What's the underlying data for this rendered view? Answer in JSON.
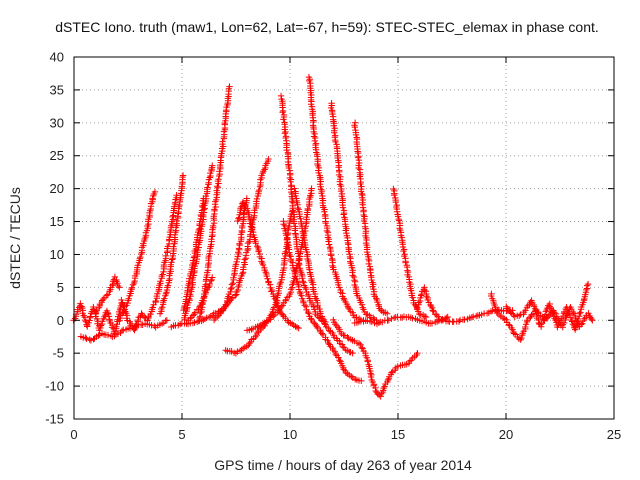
{
  "chart_data": {
    "type": "scatter",
    "title": "dSTEC Iono. truth (maw1, Lon=62, Lat=-67, h=59): STEC-STEC_elemax in phase cont.",
    "xlabel": "GPS time / hours of day 263 of year 2014",
    "ylabel": "dSTEC  / TECUs",
    "xlim": [
      0,
      25
    ],
    "ylim": [
      -15,
      40
    ],
    "xticks": [
      0,
      5,
      10,
      15,
      20,
      25
    ],
    "yticks": [
      -15,
      -10,
      -5,
      0,
      5,
      10,
      15,
      20,
      25,
      30,
      35,
      40
    ],
    "grid": true,
    "marker": "+",
    "color": "#ff0000",
    "series": [
      {
        "points": [
          [
            0.0,
            0
          ],
          [
            0.3,
            2.5
          ],
          [
            0.6,
            -1
          ],
          [
            0.9,
            2
          ],
          [
            1.2,
            -1.5
          ],
          [
            1.5,
            1.5
          ],
          [
            1.9,
            -2
          ],
          [
            2.2,
            3
          ],
          [
            2.5,
            0
          ],
          [
            2.8,
            -1.5
          ],
          [
            3.1,
            1
          ],
          [
            3.4,
            0
          ]
        ]
      },
      {
        "points": [
          [
            0.3,
            -2.5
          ],
          [
            0.8,
            -3
          ],
          [
            1.3,
            -2
          ],
          [
            1.8,
            -2.5
          ],
          [
            2.3,
            -1.5
          ],
          [
            2.8,
            -1
          ],
          [
            3.3,
            -0.5
          ],
          [
            3.8,
            -1
          ],
          [
            4.3,
            0
          ]
        ]
      },
      {
        "points": [
          [
            1.0,
            1
          ],
          [
            1.3,
            3
          ],
          [
            1.6,
            4
          ],
          [
            1.9,
            6.5
          ],
          [
            2.1,
            5
          ]
        ]
      },
      {
        "points": [
          [
            2.1,
            0
          ],
          [
            2.5,
            3
          ],
          [
            2.8,
            6
          ],
          [
            3.1,
            10
          ],
          [
            3.4,
            14
          ],
          [
            3.6,
            18
          ],
          [
            3.75,
            19.5
          ]
        ]
      },
      {
        "points": [
          [
            3.4,
            0
          ],
          [
            3.8,
            3
          ],
          [
            4.1,
            7
          ],
          [
            4.4,
            12
          ],
          [
            4.6,
            16
          ],
          [
            4.75,
            19
          ]
        ]
      },
      {
        "points": [
          [
            4.0,
            1
          ],
          [
            4.4,
            6
          ],
          [
            4.7,
            13
          ],
          [
            4.95,
            19
          ],
          [
            5.05,
            22
          ]
        ]
      },
      {
        "points": [
          [
            5.1,
            1.5
          ],
          [
            5.4,
            7
          ],
          [
            5.8,
            14
          ],
          [
            6.0,
            18.5
          ]
        ]
      },
      {
        "points": [
          [
            5.1,
            0
          ],
          [
            5.4,
            4
          ],
          [
            5.7,
            10
          ],
          [
            5.95,
            15
          ],
          [
            6.15,
            19.5
          ],
          [
            6.3,
            22
          ],
          [
            6.4,
            23.5
          ]
        ]
      },
      {
        "points": [
          [
            5.8,
            0
          ],
          [
            6.0,
            3
          ],
          [
            6.2,
            8
          ],
          [
            6.4,
            13
          ],
          [
            6.6,
            19
          ],
          [
            6.8,
            24
          ],
          [
            7.0,
            30
          ],
          [
            7.1,
            33
          ],
          [
            7.2,
            35.5
          ]
        ]
      },
      {
        "points": [
          [
            4.5,
            -1
          ],
          [
            5.0,
            -0.5
          ],
          [
            5.5,
            -0.5
          ],
          [
            6.0,
            0
          ],
          [
            6.5,
            1
          ],
          [
            7.0,
            2
          ],
          [
            7.5,
            4
          ],
          [
            7.8,
            7
          ],
          [
            8.1,
            12
          ],
          [
            8.4,
            17
          ],
          [
            8.7,
            22
          ],
          [
            9.0,
            24.5
          ]
        ]
      },
      {
        "points": [
          [
            5.3,
            0
          ],
          [
            5.8,
            2
          ],
          [
            6.2,
            5
          ],
          [
            6.4,
            6.5
          ]
        ]
      },
      {
        "points": [
          [
            6.5,
            0
          ],
          [
            7.0,
            2
          ],
          [
            7.3,
            5
          ],
          [
            7.6,
            10
          ],
          [
            7.8,
            14
          ],
          [
            7.9,
            17
          ],
          [
            8.0,
            18.5
          ]
        ]
      },
      {
        "points": [
          [
            7.6,
            15
          ],
          [
            7.8,
            18
          ],
          [
            8.0,
            17
          ],
          [
            8.4,
            12
          ],
          [
            8.8,
            8
          ],
          [
            9.2,
            4
          ],
          [
            9.6,
            1
          ],
          [
            10.0,
            -0.5
          ],
          [
            10.4,
            -1.2
          ]
        ]
      },
      {
        "points": [
          [
            7.0,
            -4.5
          ],
          [
            7.5,
            -5
          ],
          [
            8.0,
            -4
          ],
          [
            8.5,
            -2
          ],
          [
            9.0,
            0
          ],
          [
            9.4,
            3
          ],
          [
            9.7,
            8
          ],
          [
            9.95,
            14
          ],
          [
            10.1,
            16.5
          ]
        ]
      },
      {
        "points": [
          [
            8.0,
            -1.5
          ],
          [
            8.5,
            -1
          ],
          [
            9.0,
            0
          ],
          [
            9.5,
            1.5
          ],
          [
            10.0,
            4
          ],
          [
            10.4,
            9
          ],
          [
            10.7,
            14
          ],
          [
            10.9,
            18
          ],
          [
            11.0,
            20
          ]
        ]
      },
      {
        "points": [
          [
            10.2,
            20
          ],
          [
            10.5,
            15
          ],
          [
            10.8,
            10
          ],
          [
            11.0,
            6
          ],
          [
            11.3,
            2
          ],
          [
            11.7,
            -1
          ],
          [
            12.2,
            -3
          ],
          [
            12.6,
            -4.5
          ],
          [
            12.9,
            -5
          ]
        ]
      },
      {
        "points": [
          [
            9.7,
            15
          ],
          [
            10.0,
            10
          ],
          [
            10.3,
            6
          ],
          [
            10.6,
            3
          ],
          [
            11.0,
            0
          ],
          [
            11.5,
            -2
          ],
          [
            11.9,
            -4
          ],
          [
            12.3,
            -6
          ],
          [
            12.6,
            -8
          ],
          [
            13.0,
            -9
          ],
          [
            13.3,
            -9.2
          ]
        ]
      },
      {
        "points": [
          [
            9.6,
            34
          ],
          [
            9.8,
            28
          ],
          [
            10.0,
            22
          ],
          [
            10.2,
            15
          ],
          [
            10.45,
            8
          ],
          [
            10.7,
            5
          ],
          [
            11.2,
            1
          ],
          [
            11.6,
            -0.5
          ]
        ]
      },
      {
        "points": [
          [
            10.9,
            37
          ],
          [
            11.1,
            29
          ],
          [
            11.4,
            21
          ],
          [
            11.7,
            14
          ],
          [
            12.0,
            8
          ],
          [
            12.5,
            3
          ],
          [
            13.0,
            0.5
          ],
          [
            13.4,
            0
          ]
        ]
      },
      {
        "points": [
          [
            11.9,
            33
          ],
          [
            12.2,
            25
          ],
          [
            12.5,
            16
          ],
          [
            12.8,
            9
          ],
          [
            13.1,
            4
          ],
          [
            13.5,
            1
          ],
          [
            14.0,
            0
          ]
        ]
      },
      {
        "points": [
          [
            13.0,
            30
          ],
          [
            13.3,
            20
          ],
          [
            13.6,
            10
          ],
          [
            13.9,
            4
          ],
          [
            14.2,
            1.5
          ],
          [
            14.5,
            1
          ]
        ]
      },
      {
        "points": [
          [
            12.0,
            0
          ],
          [
            12.4,
            -2
          ],
          [
            12.8,
            -3
          ],
          [
            13.2,
            -3.5
          ],
          [
            13.5,
            -5
          ],
          [
            13.8,
            -9
          ],
          [
            14.0,
            -11
          ],
          [
            14.2,
            -11.5
          ],
          [
            14.4,
            -10
          ],
          [
            14.7,
            -8
          ],
          [
            15.0,
            -7
          ],
          [
            15.5,
            -6.5
          ],
          [
            15.9,
            -5
          ]
        ]
      },
      {
        "points": [
          [
            13.0,
            -0.5
          ],
          [
            13.5,
            0
          ],
          [
            14.0,
            -0.5
          ],
          [
            14.5,
            0
          ],
          [
            15.0,
            0.5
          ],
          [
            15.5,
            0.5
          ],
          [
            16.0,
            0
          ],
          [
            16.5,
            -0.5
          ],
          [
            17.0,
            0
          ],
          [
            17.5,
            -0.3
          ],
          [
            18.0,
            0
          ],
          [
            18.5,
            0.5
          ],
          [
            19.0,
            1
          ],
          [
            19.5,
            1.5
          ],
          [
            20.0,
            1.5
          ],
          [
            20.3,
            1.5
          ]
        ]
      },
      {
        "points": [
          [
            14.8,
            20
          ],
          [
            15.1,
            14
          ],
          [
            15.4,
            8
          ],
          [
            15.7,
            3
          ],
          [
            16.0,
            1
          ],
          [
            16.3,
            0.5
          ]
        ]
      },
      {
        "points": [
          [
            15.9,
            2
          ],
          [
            16.2,
            5
          ],
          [
            16.4,
            3
          ],
          [
            16.7,
            1
          ],
          [
            17.0,
            0
          ],
          [
            17.3,
            0.5
          ]
        ]
      },
      {
        "points": [
          [
            19.3,
            4
          ],
          [
            19.6,
            1
          ],
          [
            20.0,
            0
          ],
          [
            20.4,
            -2
          ],
          [
            20.7,
            -3
          ],
          [
            21.0,
            0
          ],
          [
            21.4,
            1.5
          ],
          [
            21.8,
            0
          ],
          [
            22.2,
            1.5
          ],
          [
            22.6,
            -1
          ],
          [
            23.0,
            2
          ],
          [
            23.4,
            -1
          ],
          [
            23.8,
            1
          ],
          [
            24.0,
            0
          ]
        ]
      },
      {
        "points": [
          [
            20.0,
            2
          ],
          [
            20.4,
            0.5
          ],
          [
            20.8,
            1
          ],
          [
            21.2,
            3
          ],
          [
            21.6,
            -1
          ],
          [
            22.0,
            2.5
          ],
          [
            22.4,
            -1
          ],
          [
            22.8,
            2
          ],
          [
            23.2,
            -1.5
          ],
          [
            23.6,
            3
          ],
          [
            23.8,
            5.5
          ]
        ]
      }
    ]
  }
}
